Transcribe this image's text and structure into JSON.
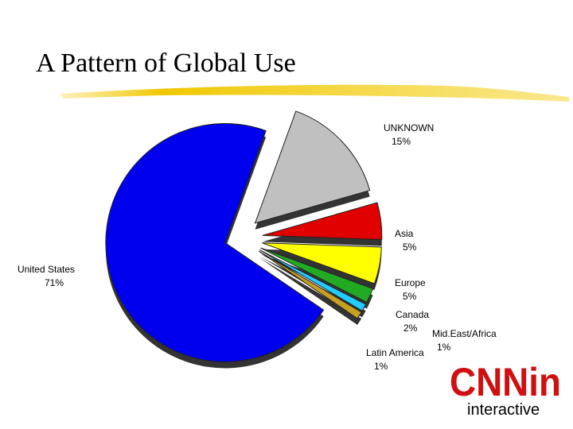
{
  "title": "A Pattern of Global Use",
  "logo": {
    "mark": "CNNin",
    "text": "interactive"
  },
  "chart_data": {
    "type": "pie",
    "categories": [
      "UNKNOWN",
      "Asia",
      "Europe",
      "Canada",
      "Mid.East/Africa",
      "Latin America",
      "United States"
    ],
    "values": [
      15,
      5,
      5,
      2,
      1,
      1,
      71
    ],
    "value_labels": [
      "15%",
      "5%",
      "5%",
      "2%",
      "1%",
      "1%",
      "71%"
    ],
    "colors": [
      "#c0c0c0",
      "#e00000",
      "#ffff00",
      "#22aa22",
      "#22ccff",
      "#c8a020",
      "#0000ee"
    ]
  }
}
